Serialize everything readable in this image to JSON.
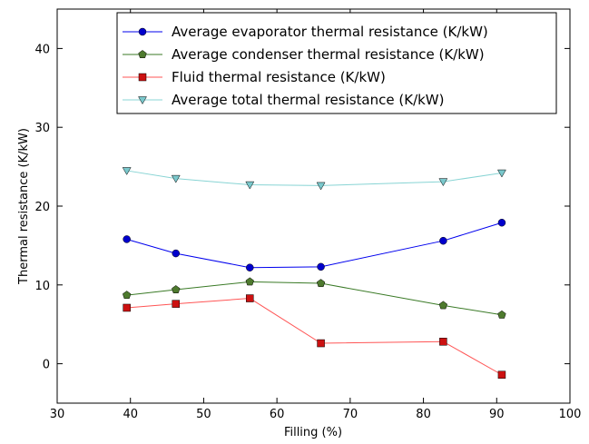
{
  "chart_data": {
    "type": "line",
    "title": "",
    "xlabel": "Filling (%)",
    "ylabel": "Thermal resistance (K/kW)",
    "xlim": [
      30,
      100
    ],
    "ylim": [
      -5,
      45
    ],
    "xticks": [
      30,
      40,
      50,
      60,
      70,
      80,
      90,
      100
    ],
    "yticks": [
      0,
      10,
      20,
      30,
      40
    ],
    "grid": false,
    "legend_position": "top-right",
    "series": [
      {
        "name": "Average evaporator thermal resistance (K/kW)",
        "x": [
          39.5,
          46.2,
          56.3,
          66.0,
          82.7,
          90.7
        ],
        "y": [
          15.8,
          14.0,
          12.2,
          12.3,
          15.6,
          17.9
        ],
        "marker": "circle",
        "line_color": "#0000ee",
        "marker_color": "#0000cc"
      },
      {
        "name": "Average condenser thermal resistance (K/kW)",
        "x": [
          39.5,
          46.2,
          56.3,
          66.0,
          82.7,
          90.7
        ],
        "y": [
          8.7,
          9.4,
          10.4,
          10.2,
          7.4,
          6.2
        ],
        "marker": "pentagon",
        "line_color": "#3a7a26",
        "marker_color": "#4e7a2e"
      },
      {
        "name": "Fluid thermal resistance (K/kW)",
        "x": [
          39.5,
          46.2,
          56.3,
          66.0,
          82.7,
          90.7
        ],
        "y": [
          7.1,
          7.6,
          8.3,
          2.6,
          2.8,
          -1.4
        ],
        "marker": "square",
        "line_color": "#ff5555",
        "marker_color": "#cc1111"
      },
      {
        "name": "Average total thermal resistance (K/kW)",
        "x": [
          39.5,
          46.2,
          56.3,
          66.0,
          82.7,
          90.7
        ],
        "y": [
          24.5,
          23.5,
          22.7,
          22.6,
          23.1,
          24.2
        ],
        "marker": "triangle-down",
        "line_color": "#88d4d4",
        "marker_color": "#7ac8cc"
      }
    ]
  }
}
